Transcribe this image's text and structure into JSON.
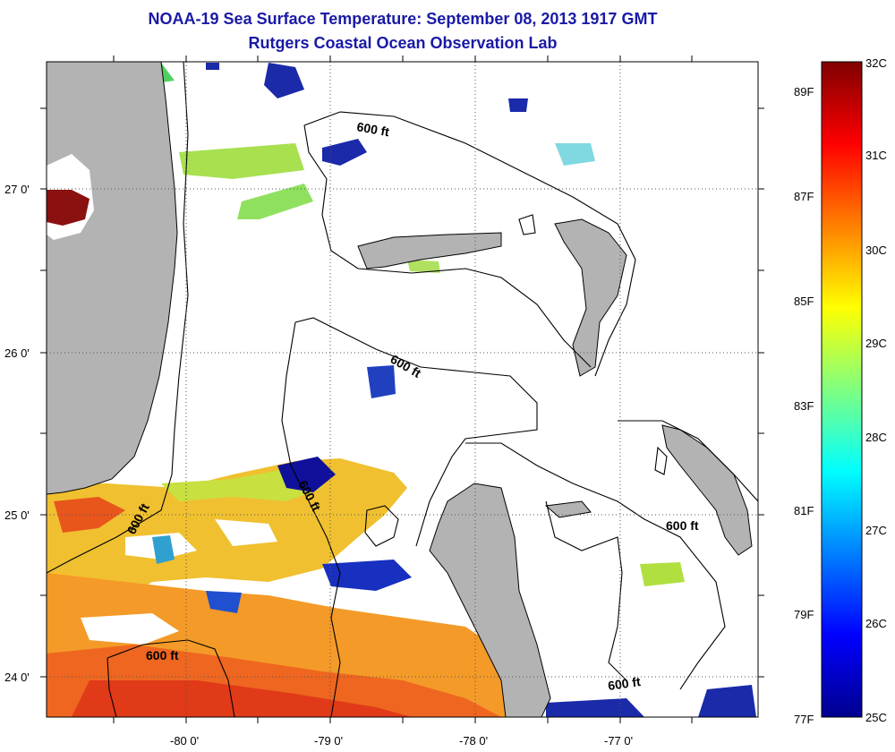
{
  "title": "NOAA-19 Sea Surface Temperature:  September 08, 2013 1917 GMT",
  "subtitle": "Rutgers Coastal Ocean Observation Lab",
  "x_ticks": [
    "-80 0'",
    "-79 0'",
    "-78 0'",
    "-77 0'"
  ],
  "y_ticks": [
    "27 0'",
    "26 0'",
    "25 0'",
    "24 0'"
  ],
  "contour_label": "600 ft",
  "colorbar": {
    "celsius": [
      "32C",
      "31C",
      "30C",
      "29C",
      "28C",
      "27C",
      "26C",
      "25C"
    ],
    "fahrenheit": [
      "89F",
      "87F",
      "85F",
      "83F",
      "81F",
      "79F",
      "77F"
    ]
  },
  "colors": {
    "title": "#1a1aa6",
    "land": "#b3b3b3",
    "cb_low": "#000080",
    "cb_high": "#800000"
  }
}
